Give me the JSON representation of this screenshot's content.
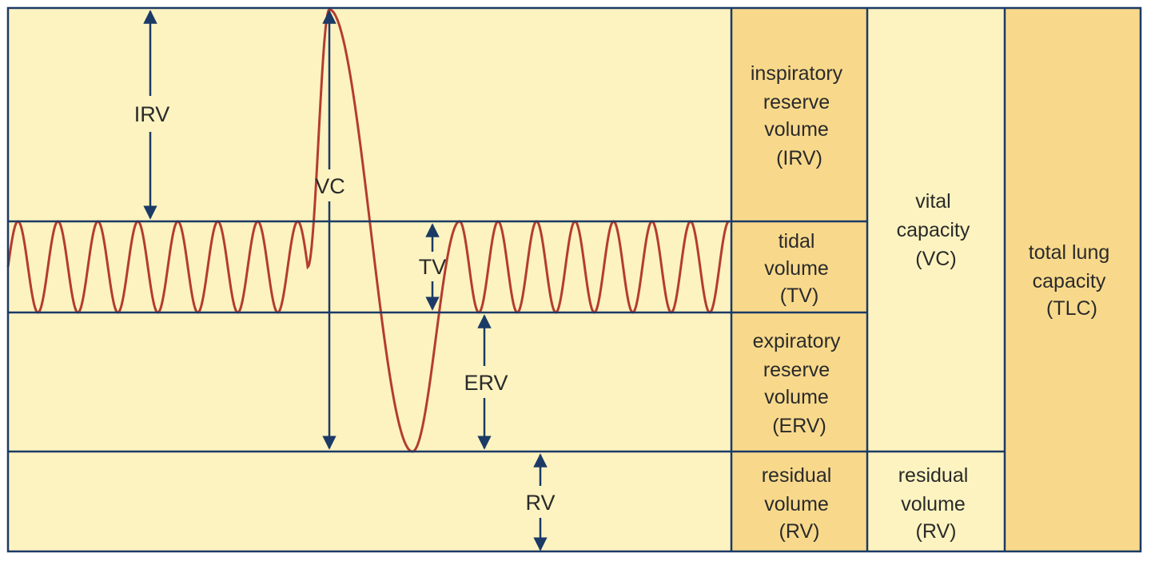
{
  "colors": {
    "graph_background": "#fcf3c0",
    "column_background": "#f8d98b",
    "border": "#1b3a66",
    "trace": "#b43c30",
    "text": "#2a2a2a"
  },
  "graph_labels": {
    "irv": "IRV",
    "vc": "VC",
    "tv": "TV",
    "erv": "ERV",
    "rv": "RV"
  },
  "volume_column": {
    "irv": [
      "inspiratory",
      "reserve",
      "volume",
      "(IRV)"
    ],
    "tv": [
      "tidal",
      "volume",
      "(TV)"
    ],
    "erv": [
      "expiratory",
      "reserve",
      "volume",
      "(ERV)"
    ],
    "rv": [
      "residual",
      "volume",
      "(RV)"
    ]
  },
  "capacity_column": {
    "vc": [
      "vital",
      "capacity",
      "(VC)"
    ],
    "rv": [
      "residual",
      "volume",
      "(RV)"
    ]
  },
  "total_column": {
    "tlc": [
      "total lung",
      "capacity",
      "(TLC)"
    ]
  },
  "trace": {
    "tidal_cycles_before": 7,
    "tidal_cycles_after": 7
  }
}
